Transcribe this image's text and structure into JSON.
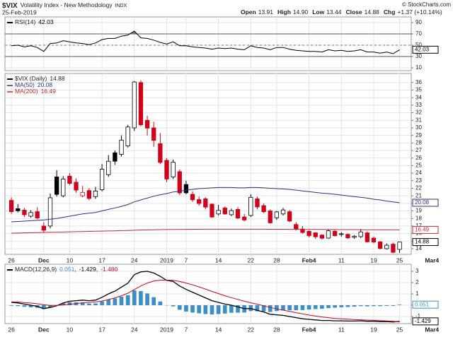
{
  "header": {
    "symbol": "$VIX",
    "name": "Volatility Index - New Methodology",
    "exchange": "INDX",
    "date": "25-Feb-2019",
    "credit": "© StockCharts.com",
    "quote": [
      {
        "label": "Open",
        "value": "13.91"
      },
      {
        "label": "High",
        "value": "14.90"
      },
      {
        "label": "Low",
        "value": "13.44"
      },
      {
        "label": "Close",
        "value": "14.88"
      },
      {
        "label": "Chg",
        "value": "+1.37 (+10.14%)"
      }
    ]
  },
  "chart_data": [
    {
      "type": "line",
      "label": "RSI(14)",
      "xlim": [
        -1,
        61.8
      ],
      "ylim": [
        5,
        100
      ],
      "yticks": [
        10,
        30,
        50,
        70,
        90
      ],
      "grid": true,
      "reference_lines": [
        70,
        30
      ],
      "midline": 50,
      "overbought": 70,
      "overbought_color": "#777777",
      "series": [
        {
          "color": "#000000",
          "box": true,
          "values": [
            49,
            50,
            47,
            49,
            46,
            39,
            53,
            54,
            58,
            56,
            54,
            53,
            51,
            54,
            60,
            62,
            62,
            66,
            68,
            75,
            63,
            62,
            59,
            55,
            52,
            56,
            49,
            49,
            47,
            46,
            45,
            43,
            45,
            44,
            45,
            43,
            42,
            49,
            46,
            45,
            42,
            46,
            46,
            43,
            41,
            40,
            39,
            39,
            38,
            42,
            40,
            41,
            39,
            40,
            42,
            38,
            38,
            36,
            38,
            35,
            42.03
          ]
        }
      ]
    },
    {
      "type": "candlestick",
      "label": "$VIX (Daily)",
      "up_color": "#000000",
      "down_color": "#d0021b",
      "grid": true,
      "xlim": [
        -1,
        61.8
      ],
      "ylim": [
        13.25,
        37.2
      ],
      "yticks": [
        14,
        15,
        16,
        17,
        18,
        19,
        20,
        21,
        22,
        23,
        24,
        25,
        26,
        27,
        28,
        29,
        30,
        31,
        32,
        33,
        34,
        35,
        36
      ],
      "xticks": [
        {
          "value": 0,
          "label": "26"
        },
        {
          "value": 5,
          "label": "Dec"
        },
        {
          "value": 9,
          "label": "10"
        },
        {
          "value": 14,
          "label": "17"
        },
        {
          "value": 19,
          "label": "24"
        },
        {
          "value": 24,
          "label": "2019"
        },
        {
          "value": 27,
          "label": "7"
        },
        {
          "value": 32,
          "label": "14"
        },
        {
          "value": 37,
          "label": "22"
        },
        {
          "value": 41,
          "label": "28"
        },
        {
          "value": 46,
          "label": "Feb4"
        },
        {
          "value": 51,
          "label": "11"
        },
        {
          "value": 56,
          "label": "19"
        },
        {
          "value": 60,
          "label": "25"
        },
        {
          "value": 65,
          "label": "Mar4"
        }
      ],
      "open": [
        20.4,
        19.3,
        19.1,
        18.3,
        18.9,
        17.0,
        17.0,
        23.5,
        21.0,
        23.6,
        22.8,
        21.0,
        21.7,
        20.9,
        21.8,
        23.8,
        26.7,
        26.5,
        27.6,
        30.0,
        36.0,
        31.0,
        30.0,
        27.9,
        25.7,
        23.5,
        24.2,
        22.5,
        21.2,
        20.5,
        20.6,
        19.9,
        18.6,
        19.4,
        18.5,
        19.2,
        18.2,
        18.4,
        20.6,
        19.7,
        19.0,
        18.1,
        18.6,
        18.9,
        17.2,
        16.6,
        16.3,
        16.1,
        15.8,
        15.4,
        16.3,
        15.9,
        15.9,
        15.5,
        15.6,
        16.1,
        15.4,
        14.9,
        14.0,
        14.6,
        13.91
      ],
      "high": [
        20.8,
        19.9,
        19.4,
        19.1,
        19.5,
        17.5,
        21.3,
        24.4,
        23.6,
        24.0,
        23.3,
        22.3,
        22.0,
        22.2,
        25.2,
        26.4,
        27.0,
        29.0,
        30.4,
        36.2,
        36.3,
        31.6,
        30.8,
        29.3,
        26.0,
        25.8,
        24.5,
        23.0,
        21.6,
        20.9,
        20.8,
        20.0,
        19.8,
        19.6,
        19.3,
        19.5,
        18.6,
        21.2,
        20.9,
        20.0,
        19.2,
        19.0,
        19.4,
        19.1,
        17.5,
        17.0,
        16.4,
        16.2,
        15.9,
        16.6,
        16.5,
        16.2,
        16.0,
        15.8,
        16.6,
        16.3,
        15.6,
        15.0,
        14.7,
        14.8,
        14.9
      ],
      "low": [
        18.6,
        18.8,
        18.2,
        18.1,
        17.9,
        16.2,
        16.7,
        20.9,
        20.8,
        22.4,
        21.4,
        20.8,
        20.4,
        20.6,
        21.6,
        23.5,
        25.1,
        26.2,
        27.4,
        29.6,
        30.2,
        29.0,
        27.5,
        25.2,
        22.8,
        23.2,
        21.1,
        21.2,
        20.2,
        19.7,
        19.2,
        18.1,
        18.4,
        18.5,
        18.3,
        17.9,
        17.6,
        18.2,
        19.2,
        18.7,
        17.3,
        17.8,
        18.4,
        17.5,
        16.4,
        16.0,
        15.5,
        15.3,
        15.2,
        15.3,
        15.6,
        15.6,
        15.3,
        15.3,
        15.4,
        14.8,
        14.7,
        13.9,
        13.9,
        13.4,
        13.44
      ],
      "close": [
        18.9,
        19.02,
        18.49,
        18.79,
        18.07,
        16.44,
        20.74,
        21.19,
        23.23,
        22.64,
        21.76,
        21.46,
        20.65,
        21.63,
        24.52,
        25.58,
        25.58,
        28.38,
        30.11,
        36.07,
        30.41,
        29.96,
        28.34,
        25.42,
        23.22,
        25.45,
        21.38,
        21.4,
        20.47,
        19.98,
        19.5,
        18.19,
        19.07,
        18.6,
        19.04,
        18.06,
        17.8,
        20.8,
        19.52,
        18.89,
        17.42,
        18.87,
        19.13,
        17.66,
        16.57,
        16.14,
        15.73,
        15.57,
        15.38,
        16.37,
        15.72,
        15.97,
        15.43,
        15.65,
        16.22,
        14.91,
        14.88,
        14.02,
        14.46,
        13.51,
        14.88
      ],
      "series": [
        {
          "name": "MA(50)",
          "color": "#2e2e8a",
          "box": true,
          "values": [
            17.55,
            17.6,
            17.65,
            17.7,
            17.75,
            17.8,
            17.9,
            18.0,
            18.15,
            18.3,
            18.45,
            18.6,
            18.7,
            18.8,
            19.0,
            19.2,
            19.4,
            19.6,
            19.85,
            20.2,
            20.45,
            20.7,
            20.95,
            21.15,
            21.3,
            21.5,
            21.6,
            21.75,
            21.85,
            21.95,
            22.0,
            22.05,
            22.1,
            22.1,
            22.1,
            22.05,
            22.05,
            22.1,
            22.1,
            22.05,
            22.0,
            21.95,
            21.9,
            21.85,
            21.75,
            21.65,
            21.55,
            21.45,
            21.35,
            21.3,
            21.2,
            21.1,
            21.0,
            20.9,
            20.8,
            20.7,
            20.55,
            20.45,
            20.3,
            20.2,
            20.08
          ]
        },
        {
          "name": "MA(200)",
          "color": "#c0282d",
          "box": true,
          "values": [
            16.05,
            16.07,
            16.09,
            16.11,
            16.13,
            16.15,
            16.17,
            16.19,
            16.21,
            16.23,
            16.25,
            16.27,
            16.29,
            16.31,
            16.33,
            16.35,
            16.37,
            16.39,
            16.41,
            16.44,
            16.47,
            16.49,
            16.51,
            16.52,
            16.53,
            16.54,
            16.55,
            16.56,
            16.57,
            16.57,
            16.58,
            16.58,
            16.58,
            16.58,
            16.58,
            16.58,
            16.58,
            16.58,
            16.58,
            16.58,
            16.57,
            16.57,
            16.57,
            16.56,
            16.56,
            16.55,
            16.55,
            16.54,
            16.54,
            16.53,
            16.53,
            16.52,
            16.52,
            16.52,
            16.51,
            16.51,
            16.51,
            16.5,
            16.5,
            16.5,
            16.49
          ]
        }
      ]
    },
    {
      "type": "line",
      "label": "MACD(12,26,9)",
      "separator": ",",
      "grid": true,
      "xlim": [
        -1,
        61.8
      ],
      "ylim": [
        -1.625,
        3.625
      ],
      "yticks": [
        -1,
        0,
        1,
        2,
        3
      ],
      "xticks": [
        {
          "value": 0,
          "label": "26"
        },
        {
          "value": 5,
          "label": "Dec"
        },
        {
          "value": 9,
          "label": "10"
        },
        {
          "value": 14,
          "label": "17"
        },
        {
          "value": 19,
          "label": "24"
        },
        {
          "value": 24,
          "label": "2019"
        },
        {
          "value": 27,
          "label": "7"
        },
        {
          "value": 32,
          "label": "14"
        },
        {
          "value": 37,
          "label": "22"
        },
        {
          "value": 41,
          "label": "28"
        },
        {
          "value": 46,
          "label": "Feb4"
        },
        {
          "value": 51,
          "label": "11"
        },
        {
          "value": 56,
          "label": "19"
        },
        {
          "value": 60,
          "label": "25"
        },
        {
          "value": 65,
          "label": "Mar4"
        }
      ],
      "series": [
        {
          "style": "bar",
          "color": "#3b8fc7",
          "box": true,
          "values": [
            -0.05,
            -0.08,
            -0.14,
            -0.19,
            -0.23,
            -0.34,
            -0.19,
            -0.03,
            0.18,
            0.26,
            0.25,
            0.24,
            0.15,
            0.16,
            0.33,
            0.5,
            0.6,
            0.76,
            0.89,
            1.31,
            1.25,
            1.04,
            0.71,
            0.33,
            -0.02,
            -0.1,
            -0.4,
            -0.56,
            -0.65,
            -0.72,
            -0.78,
            -0.82,
            -0.78,
            -0.74,
            -0.67,
            -0.66,
            -0.65,
            -0.52,
            -0.54,
            -0.55,
            -0.6,
            -0.52,
            -0.46,
            -0.45,
            -0.44,
            -0.43,
            -0.38,
            -0.34,
            -0.31,
            -0.25,
            -0.22,
            -0.18,
            -0.16,
            -0.13,
            -0.08,
            -0.1,
            -0.08,
            -0.08,
            -0.06,
            -0.06,
            0.051
          ]
        },
        {
          "style": "line",
          "color": "#000000",
          "box": true,
          "width": 1.3,
          "values": [
            0.25,
            0.2,
            0.1,
            0.0,
            -0.1,
            -0.3,
            -0.2,
            -0.05,
            0.2,
            0.35,
            0.4,
            0.45,
            0.4,
            0.45,
            0.7,
            1.0,
            1.25,
            1.6,
            1.95,
            2.7,
            2.95,
            3.0,
            2.85,
            2.55,
            2.2,
            2.1,
            1.7,
            1.4,
            1.15,
            0.9,
            0.65,
            0.4,
            0.25,
            0.1,
            0.0,
            -0.15,
            -0.3,
            -0.3,
            -0.45,
            -0.6,
            -0.8,
            -0.85,
            -0.9,
            -1.0,
            -1.1,
            -1.2,
            -1.25,
            -1.3,
            -1.35,
            -1.35,
            -1.38,
            -1.38,
            -1.4,
            -1.4,
            -1.38,
            -1.42,
            -1.42,
            -1.45,
            -1.45,
            -1.48,
            -1.429
          ]
        },
        {
          "style": "line",
          "color": "#d0021b",
          "box": false,
          "width": 1,
          "last_label": "-1.480",
          "values": [
            0.3,
            0.28,
            0.24,
            0.19,
            0.13,
            0.04,
            -0.01,
            -0.02,
            0.02,
            0.09,
            0.15,
            0.21,
            0.25,
            0.29,
            0.37,
            0.5,
            0.65,
            0.84,
            1.06,
            1.39,
            1.7,
            1.96,
            2.14,
            2.22,
            2.22,
            2.2,
            2.1,
            1.96,
            1.8,
            1.62,
            1.43,
            1.22,
            1.03,
            0.84,
            0.67,
            0.51,
            0.35,
            0.22,
            0.09,
            -0.05,
            -0.2,
            -0.33,
            -0.44,
            -0.55,
            -0.66,
            -0.77,
            -0.87,
            -0.96,
            -1.04,
            -1.1,
            -1.16,
            -1.2,
            -1.24,
            -1.27,
            -1.3,
            -1.32,
            -1.34,
            -1.37,
            -1.39,
            -1.42,
            -1.48
          ]
        }
      ]
    }
  ]
}
